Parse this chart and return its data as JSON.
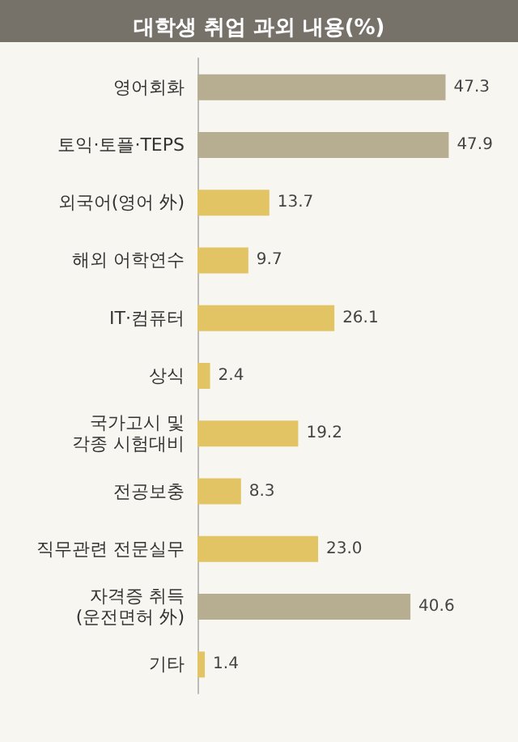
{
  "chart_data": {
    "type": "bar",
    "orientation": "horizontal",
    "title": "대학생 취업 과외 내용(%)",
    "categories": [
      "영어회화",
      "토익·토플·TEPS",
      "외국어(영어 外)",
      "해외 어학연수",
      "IT·컴퓨터",
      "상식",
      "국가고시 및\n각종 시험대비",
      "전공보충",
      "직무관련 전문실무",
      "자격증 취득\n(운전면허 外)",
      "기타"
    ],
    "values": [
      47.3,
      47.9,
      13.7,
      9.7,
      26.1,
      2.4,
      19.2,
      8.3,
      23.0,
      40.6,
      1.4
    ],
    "colors": [
      "#b7ae92",
      "#b7ae92",
      "#e2c464",
      "#e2c464",
      "#e2c464",
      "#e2c464",
      "#e2c464",
      "#e2c464",
      "#e2c464",
      "#b7ae92",
      "#e2c464"
    ],
    "value_labels": [
      "47.3",
      "47.9",
      "13.7",
      "9.7",
      "26.1",
      "2.4",
      "19.2",
      "8.3",
      "23.0",
      "40.6",
      "1.4"
    ],
    "grid": false
  }
}
